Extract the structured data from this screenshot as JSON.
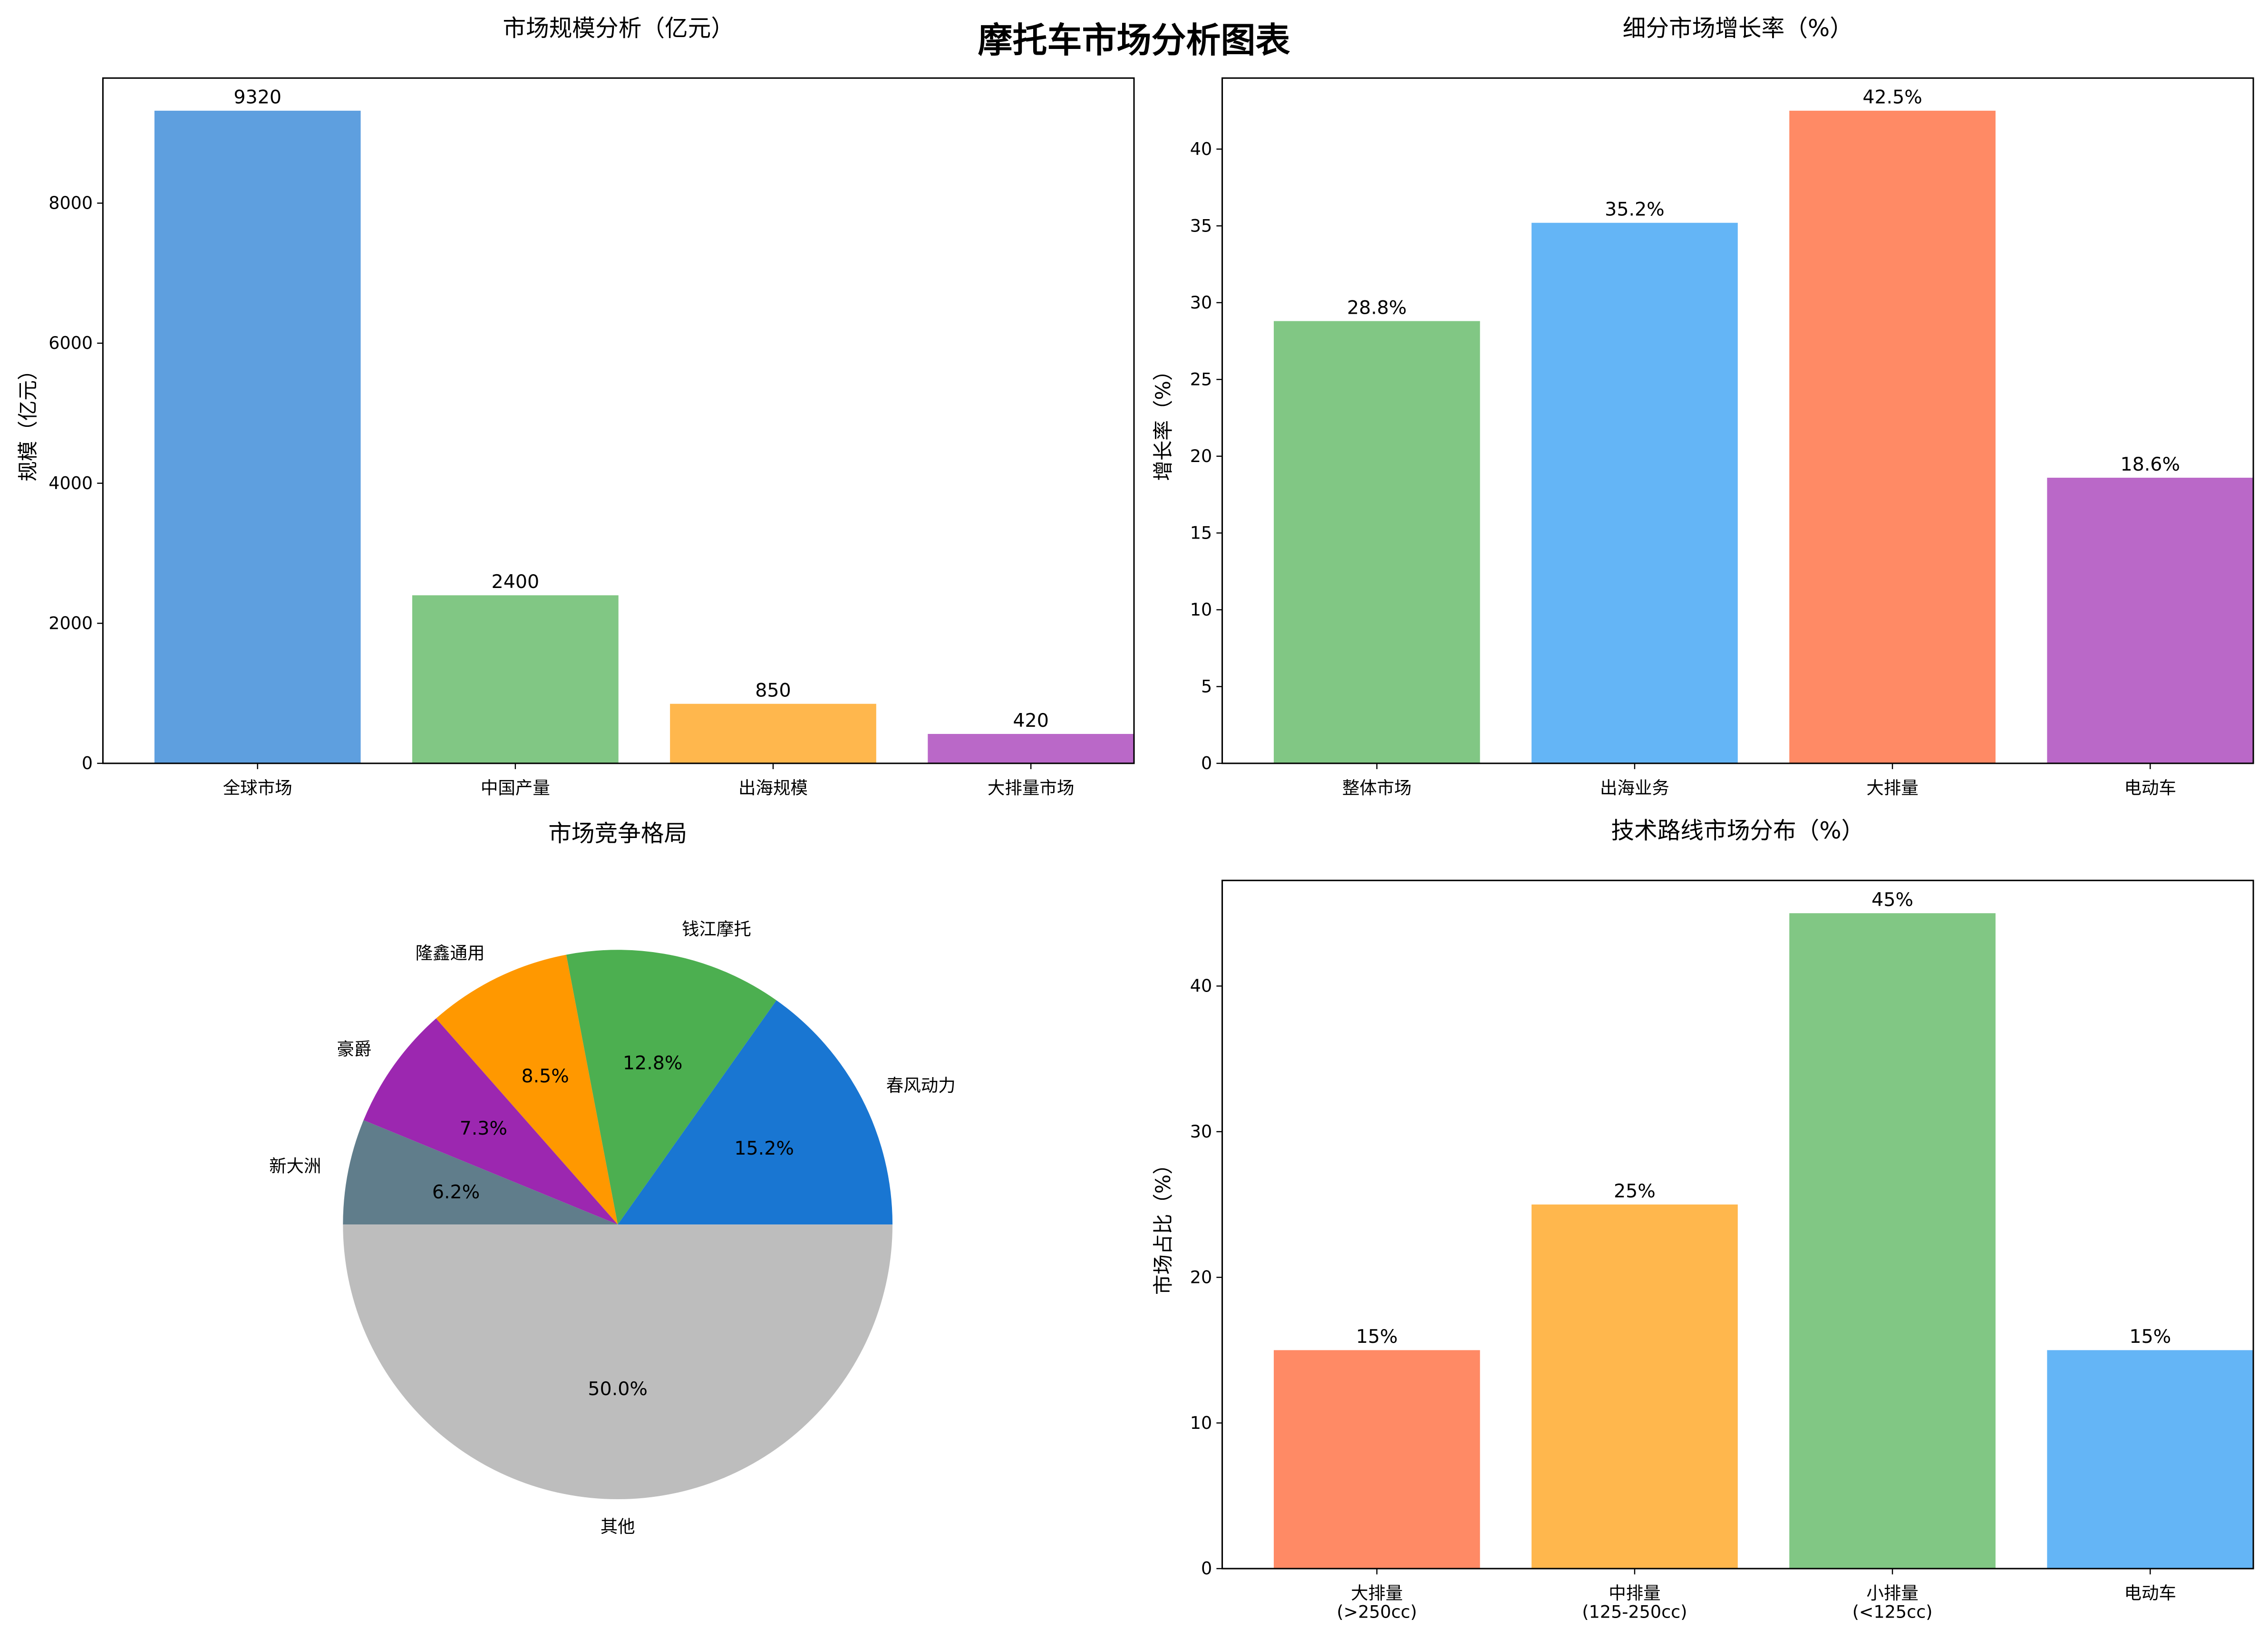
{
  "title": "摩托车市场分析图表",
  "chart_data": [
    {
      "type": "bar",
      "title": "市场规模分析（亿元）",
      "xlabel": "",
      "ylabel": "规模（亿元）",
      "categories": [
        "全球市场",
        "中国产量",
        "出海规模",
        "大排量市场"
      ],
      "values": [
        9320,
        2400,
        850,
        420
      ],
      "value_labels": [
        "9320",
        "2400",
        "850",
        "420"
      ],
      "colors": [
        "#5E9FDF",
        "#81C784",
        "#FFB74D",
        "#BA68C8"
      ],
      "ylim": [
        0,
        9786
      ],
      "yticks": [
        0,
        2000,
        4000,
        6000,
        8000
      ],
      "grid": false
    },
    {
      "type": "bar",
      "title": "细分市场增长率（%）",
      "xlabel": "",
      "ylabel": "增长率（%）",
      "categories": [
        "整体市场",
        "出海业务",
        "大排量",
        "电动车"
      ],
      "values": [
        28.8,
        35.2,
        42.5,
        18.6
      ],
      "value_labels": [
        "28.8%",
        "35.2%",
        "42.5%",
        "18.6%"
      ],
      "colors": [
        "#81C784",
        "#64B5F6",
        "#FF8A65",
        "#BA68C8"
      ],
      "ylim": [
        0,
        44.625
      ],
      "yticks": [
        0,
        5,
        10,
        15,
        20,
        25,
        30,
        35,
        40
      ],
      "grid": false
    },
    {
      "type": "pie",
      "title": "市场竞争格局",
      "categories": [
        "春风动力",
        "钱江摩托",
        "隆鑫通用",
        "豪爵",
        "新大洲",
        "其他"
      ],
      "values": [
        15.2,
        12.8,
        8.5,
        7.3,
        6.2,
        50.0
      ],
      "value_labels": [
        "15.2%",
        "12.8%",
        "8.5%",
        "7.3%",
        "6.2%",
        "50.0%"
      ],
      "colors": [
        "#1976D2",
        "#4CAF50",
        "#FF9800",
        "#9C27B0",
        "#607D8B",
        "#BDBDBD"
      ],
      "start_angle": 0
    },
    {
      "type": "bar",
      "title": "技术路线市场分布（%）",
      "xlabel": "",
      "ylabel": "市场占比（%）",
      "categories": [
        "大排量\n(>250cc)",
        "中排量\n(125-250cc)",
        "小排量\n(<125cc)",
        "电动车"
      ],
      "values": [
        15,
        25,
        45,
        15
      ],
      "value_labels": [
        "15%",
        "25%",
        "45%",
        "15%"
      ],
      "colors": [
        "#FF8A65",
        "#FFB74D",
        "#81C784",
        "#64B5F6"
      ],
      "ylim": [
        0,
        47.25
      ],
      "yticks": [
        0,
        10,
        20,
        30,
        40
      ],
      "grid": false
    }
  ]
}
